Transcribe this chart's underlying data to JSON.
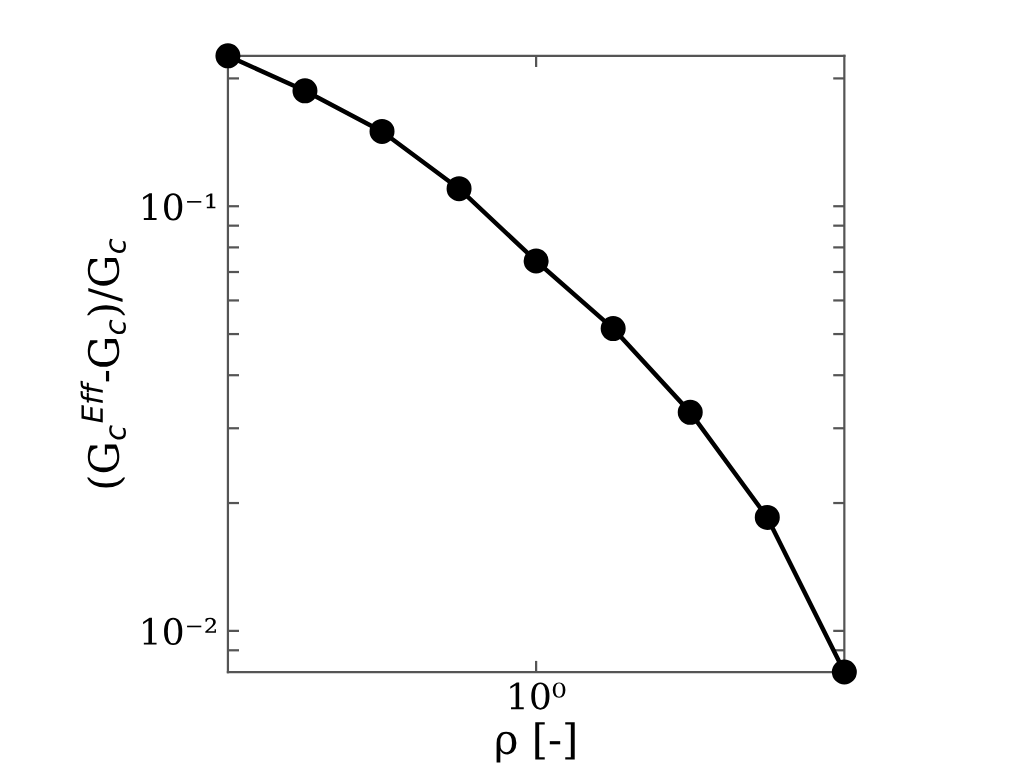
{
  "chart_data": {
    "type": "line",
    "xlabel": "ρ [-]",
    "ylabel": "(G$_{c}$$^{Eff}$-G$_{c}$)/G$_{c}$",
    "categories": [
      null,
      null,
      null,
      null,
      "10⁰",
      null,
      null,
      null,
      null
    ],
    "series": [
      {
        "color": "#000000",
        "values": [
          0.226,
          0.187,
          0.15,
          0.11,
          0.0743,
          0.0515,
          0.0327,
          0.0185,
          0.008
        ]
      }
    ],
    "log": "y",
    "ylim": [
      0.008,
      0.226
    ],
    "yticks": [
      {
        "value": 0.009,
        "label": null
      },
      {
        "value": 0.01,
        "label": "10⁻²"
      },
      {
        "value": 0.02,
        "label": null
      },
      {
        "value": 0.03,
        "label": null
      },
      {
        "value": 0.04,
        "label": null
      },
      {
        "value": 0.05,
        "label": null
      },
      {
        "value": 0.06,
        "label": null
      },
      {
        "value": 0.07,
        "label": null
      },
      {
        "value": 0.08,
        "label": null
      },
      {
        "value": 0.09,
        "label": null
      },
      {
        "value": 0.1,
        "label": "10⁻¹"
      },
      {
        "value": 0.2,
        "label": null
      }
    ],
    "marker": "circle",
    "line_style": "solid"
  }
}
